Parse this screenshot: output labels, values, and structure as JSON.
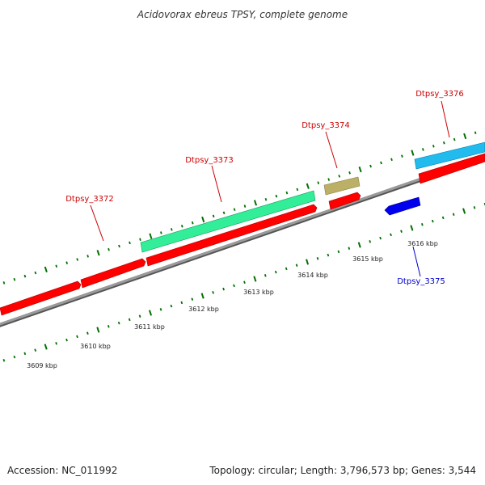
{
  "title": "Acidovorax ebreus TPSY, complete genome",
  "footer": {
    "accession": "Accession: NC_011992",
    "summary": "Topology: circular; Length: 3,796,573 bp; Genes: 3,544"
  },
  "colors": {
    "forward_gene": "#ff0000",
    "reverse_gene": "#0000ee",
    "forward_label": "#cc0000",
    "reverse_label": "#0000cc",
    "tick": "#007000",
    "backbone": "#808080"
  },
  "kbp_labels": [
    "3609 kbp",
    "3610 kbp",
    "3611 kbp",
    "3612 kbp",
    "3613 kbp",
    "3614 kbp",
    "3615 kbp",
    "3616 kbp"
  ],
  "genes": [
    {
      "strand": "+",
      "color": "#ff0000",
      "label": ""
    },
    {
      "strand": "+",
      "color": "#ff0000",
      "label": ""
    },
    {
      "strand": "+",
      "color": "#ff0000",
      "label": "Dtpsy_3372"
    },
    {
      "strand": "+",
      "color": "#ff0000",
      "label": "Dtpsy_3373"
    },
    {
      "strand": "+",
      "color": "#ff0000",
      "label": "Dtpsy_3374"
    },
    {
      "strand": "+",
      "color": "#ff0000",
      "label": "Dtpsy_3376"
    },
    {
      "strand": "-",
      "color": "#0000ee",
      "label": "Dtpsy_3375"
    }
  ],
  "features": [
    {
      "color": "#33ee99"
    },
    {
      "color": "#bbb066"
    },
    {
      "color": "#22bbee"
    }
  ]
}
